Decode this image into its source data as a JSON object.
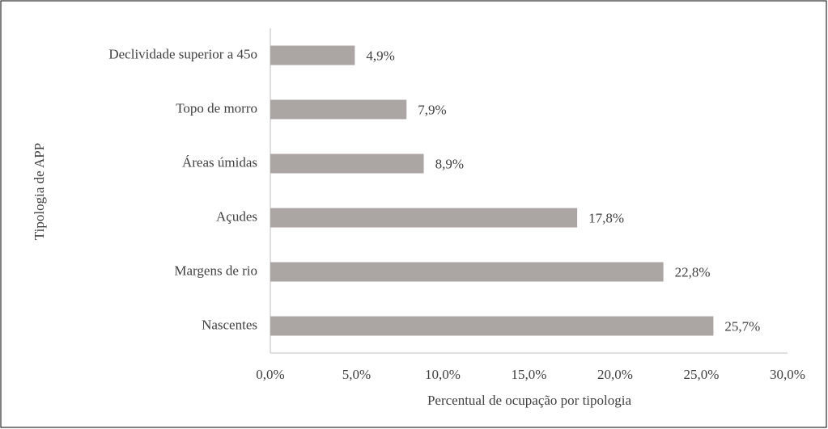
{
  "chart_data": {
    "type": "bar",
    "orientation": "horizontal",
    "x_label": "Percentual de ocupação por tipologia",
    "y_label": "Tipologia de APP",
    "categories": [
      "Declividade superior a 45o",
      "Topo de morro",
      "Áreas úmidas",
      "Açudes",
      "Margens de rio",
      "Nascentes"
    ],
    "values": [
      4.9,
      7.9,
      8.9,
      17.8,
      22.8,
      25.7
    ],
    "value_labels": [
      "4,9%",
      "7,9%",
      "8,9%",
      "17,8%",
      "22,8%",
      "25,7%"
    ],
    "color": "#aba5a3",
    "xlim": [
      0,
      30
    ],
    "xticks": [
      {
        "value": 0,
        "label": "0,0%"
      },
      {
        "value": 5,
        "label": "5,0%"
      },
      {
        "value": 10,
        "label": "10,0%"
      },
      {
        "value": 15,
        "label": "15,0%"
      },
      {
        "value": 20,
        "label": "20,0%"
      },
      {
        "value": 25,
        "label": "25,0%"
      },
      {
        "value": 30,
        "label": "30,0%"
      }
    ],
    "grid": false
  }
}
